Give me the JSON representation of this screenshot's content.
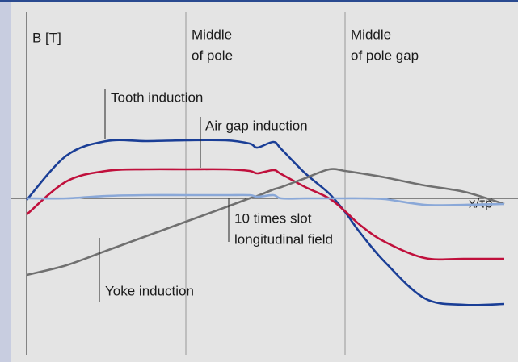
{
  "chart_data": {
    "type": "line",
    "ylabel": "B [T]",
    "xlabel": "x/τp",
    "xlim": [
      0,
      3
    ],
    "ylim": [
      -2,
      2.3
    ],
    "x": [
      0,
      0.25,
      0.5,
      0.75,
      1,
      1.25,
      1.4,
      1.45,
      1.55,
      1.6,
      1.75,
      1.9,
      2,
      2.1,
      2.25,
      2.5,
      2.75,
      3
    ],
    "series": [
      {
        "name": "Tooth induction",
        "color": "#1a3e96",
        "values": [
          -0.02,
          0.53,
          0.71,
          0.71,
          0.72,
          0.72,
          0.68,
          0.63,
          0.7,
          0.61,
          0.31,
          0.06,
          -0.17,
          -0.44,
          -0.79,
          -1.24,
          -1.32,
          -1.31
        ]
      },
      {
        "name": "Air gap induction",
        "color": "#c0103c",
        "values": [
          -0.2,
          0.21,
          0.34,
          0.36,
          0.36,
          0.36,
          0.34,
          0.31,
          0.35,
          0.3,
          0.14,
          0,
          -0.16,
          -0.34,
          -0.54,
          -0.74,
          -0.75,
          -0.75
        ]
      },
      {
        "name": "Yoke induction",
        "color": "#707070",
        "values": [
          -0.95,
          -0.83,
          -0.65,
          -0.47,
          -0.29,
          -0.11,
          0,
          0.03,
          0.11,
          0.14,
          0.25,
          0.36,
          0.34,
          0.31,
          0.26,
          0.16,
          0.08,
          -0.07
        ]
      },
      {
        "name": [
          "10 times slot",
          "longitudinal field"
        ],
        "color": "#8aa8d8",
        "values": [
          0,
          0,
          0.03,
          0.04,
          0.04,
          0.04,
          0.04,
          0.02,
          0.04,
          0,
          0,
          0,
          0,
          0,
          -0.01,
          -0.08,
          -0.08,
          -0.07
        ]
      }
    ],
    "markers": [
      {
        "x": 1,
        "text": [
          "Middle",
          "of pole"
        ]
      },
      {
        "x": 2,
        "text": [
          "Middle",
          "of pole gap"
        ]
      }
    ]
  }
}
